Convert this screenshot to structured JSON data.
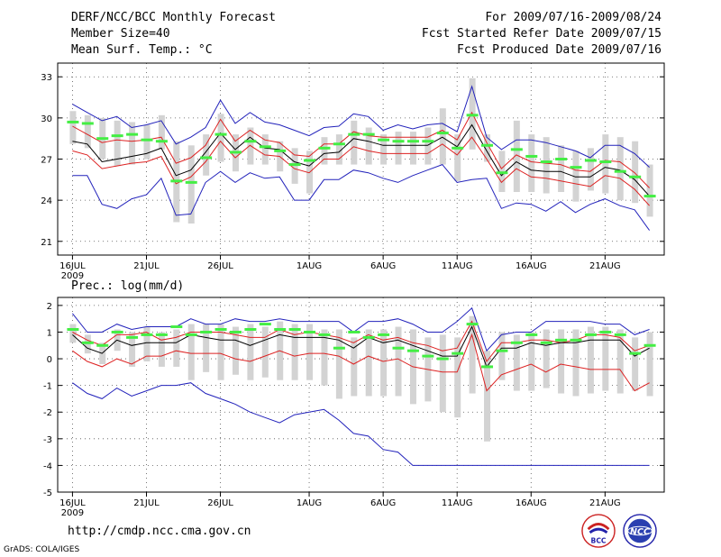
{
  "header": {
    "title": "DERF/NCC/BCC Monthly Forecast",
    "member_size": "Member Size=40",
    "variable": "Mean Surf. Temp.: °C",
    "period": "For 2009/07/16-2009/08/24",
    "start_date": "Fcst Started Refer Date 2009/07/15",
    "produced": "Fcst Produced Date 2009/07/16"
  },
  "footer": {
    "url": "http://cmdp.ncc.cma.gov.cn",
    "credit": "GrADS: COLA/IGES"
  },
  "logos": [
    {
      "name": "bcc-logo",
      "text": "BCC"
    },
    {
      "name": "ncc-logo",
      "text": "NCC"
    }
  ],
  "colors": {
    "box": "#d3d3d3",
    "median": "#44ee44",
    "mean": "#000000",
    "spread": "#dd2222",
    "extreme": "#2222bb",
    "grid": "#555555"
  },
  "chart_data": [
    {
      "type": "box-forecast",
      "title": "Mean Surf. Temp.: °C",
      "x_start_day": 0,
      "x_range": [
        -1,
        40
      ],
      "ylim": [
        20,
        34
      ],
      "yticks": [
        21,
        24,
        27,
        30,
        33
      ],
      "xticks": [
        {
          "day": 0,
          "label": "16JUL",
          "sub": "2009"
        },
        {
          "day": 5,
          "label": "21JUL"
        },
        {
          "day": 10,
          "label": "26JUL"
        },
        {
          "day": 16,
          "label": "1AUG"
        },
        {
          "day": 21,
          "label": "6AUG"
        },
        {
          "day": 26,
          "label": "11AUG"
        },
        {
          "day": 31,
          "label": "16AUG"
        },
        {
          "day": 36,
          "label": "21AUG"
        }
      ],
      "grid": true,
      "series": {
        "max": [
          31.0,
          30.4,
          29.8,
          30.1,
          29.3,
          29.5,
          29.8,
          28.1,
          28.6,
          29.3,
          31.3,
          29.6,
          30.4,
          29.7,
          29.5,
          29.1,
          28.7,
          29.3,
          29.4,
          30.3,
          30.1,
          29.1,
          29.5,
          29.2,
          29.5,
          29.6,
          29.0,
          32.3,
          28.6,
          27.7,
          28.4,
          28.4,
          28.2,
          27.9,
          27.6,
          27.1,
          28.0,
          28.0,
          27.4,
          26.4
        ],
        "mean_plus": [
          29.4,
          28.8,
          28.2,
          28.4,
          28.3,
          28.4,
          28.6,
          26.7,
          27.1,
          28.0,
          29.9,
          28.3,
          29.1,
          28.4,
          28.2,
          27.3,
          27.2,
          28.1,
          28.1,
          29.0,
          28.7,
          28.6,
          28.6,
          28.6,
          28.6,
          29.1,
          28.4,
          30.4,
          28.2,
          26.3,
          27.3,
          26.8,
          26.7,
          26.6,
          26.2,
          26.1,
          26.9,
          26.8,
          26.0,
          24.9
        ],
        "mean": [
          28.3,
          28.1,
          26.8,
          27.0,
          27.2,
          27.4,
          27.8,
          25.8,
          26.2,
          27.5,
          28.9,
          27.7,
          28.6,
          27.8,
          27.7,
          26.8,
          26.5,
          27.4,
          27.5,
          28.5,
          28.3,
          28.0,
          28.0,
          28.0,
          28.0,
          28.6,
          27.9,
          29.5,
          27.6,
          25.8,
          26.8,
          26.2,
          26.1,
          26.1,
          25.7,
          25.7,
          26.4,
          26.2,
          25.5,
          24.3
        ],
        "mean_minus": [
          27.6,
          27.3,
          26.3,
          26.5,
          26.7,
          26.8,
          27.2,
          25.2,
          25.7,
          26.8,
          28.3,
          27.1,
          28.0,
          27.3,
          27.2,
          26.3,
          26.0,
          27.0,
          27.0,
          27.9,
          27.6,
          27.4,
          27.4,
          27.4,
          27.4,
          28.1,
          27.3,
          28.6,
          27.0,
          25.3,
          26.3,
          25.7,
          25.6,
          25.4,
          25.2,
          25.0,
          25.8,
          25.6,
          24.8,
          23.6
        ],
        "min": [
          25.8,
          25.8,
          23.7,
          23.4,
          24.1,
          24.4,
          25.6,
          22.9,
          23.0,
          25.3,
          26.1,
          25.3,
          26.0,
          25.6,
          25.7,
          24.0,
          24.0,
          25.5,
          25.5,
          26.2,
          26.0,
          25.6,
          25.3,
          25.8,
          26.2,
          26.6,
          25.3,
          25.5,
          25.6,
          23.4,
          23.8,
          23.7,
          23.2,
          23.9,
          23.1,
          23.7,
          24.1,
          23.6,
          23.3,
          21.8
        ],
        "box_top": [
          30.5,
          30.2,
          30.0,
          29.8,
          29.7,
          29.5,
          30.2,
          28.3,
          28.0,
          28.8,
          30.3,
          28.8,
          29.3,
          28.8,
          28.3,
          27.8,
          27.6,
          28.6,
          28.8,
          29.8,
          29.3,
          28.8,
          29.0,
          29.0,
          29.3,
          30.7,
          28.8,
          32.9,
          28.8,
          27.6,
          29.8,
          28.8,
          28.6,
          28.0,
          27.6,
          27.8,
          28.8,
          28.6,
          28.3,
          26.6
        ],
        "box_bottom": [
          28.1,
          27.8,
          27.0,
          26.5,
          26.6,
          27.0,
          27.7,
          22.4,
          22.3,
          25.8,
          26.8,
          26.1,
          26.6,
          26.6,
          26.1,
          25.2,
          24.5,
          26.6,
          26.6,
          26.6,
          26.6,
          26.6,
          26.6,
          26.6,
          26.6,
          26.6,
          25.4,
          27.7,
          26.8,
          24.6,
          24.6,
          24.6,
          24.5,
          24.6,
          23.9,
          24.7,
          24.5,
          24.0,
          23.8,
          22.8
        ],
        "median": [
          29.7,
          29.6,
          28.5,
          28.7,
          28.8,
          28.4,
          28.3,
          25.4,
          25.3,
          27.1,
          28.8,
          27.5,
          28.3,
          27.9,
          27.6,
          26.6,
          26.9,
          27.8,
          28.1,
          28.8,
          28.8,
          28.4,
          28.3,
          28.3,
          28.3,
          28.9,
          27.8,
          30.2,
          28.0,
          26.0,
          27.7,
          27.2,
          26.8,
          27.0,
          26.4,
          26.9,
          26.8,
          26.1,
          25.7,
          24.3
        ]
      }
    },
    {
      "type": "box-forecast",
      "title": "Prec.: log(mm/d)",
      "x_start_day": 0,
      "x_range": [
        -1,
        40
      ],
      "ylim": [
        -5,
        2.3
      ],
      "yticks": [
        -5,
        -4,
        -3,
        -2,
        -1,
        0,
        1,
        2
      ],
      "xticks": [
        {
          "day": 0,
          "label": "16JUL",
          "sub": "2009"
        },
        {
          "day": 5,
          "label": "21JUL"
        },
        {
          "day": 10,
          "label": "26JUL"
        },
        {
          "day": 16,
          "label": "1AUG"
        },
        {
          "day": 21,
          "label": "6AUG"
        },
        {
          "day": 26,
          "label": "11AUG"
        },
        {
          "day": 31,
          "label": "16AUG"
        },
        {
          "day": 36,
          "label": "21AUG"
        }
      ],
      "grid": true,
      "series": {
        "max": [
          1.7,
          1.0,
          1.0,
          1.3,
          1.1,
          1.2,
          1.2,
          1.2,
          1.5,
          1.3,
          1.3,
          1.5,
          1.4,
          1.4,
          1.5,
          1.4,
          1.4,
          1.4,
          1.4,
          1.0,
          1.4,
          1.4,
          1.5,
          1.3,
          1.0,
          1.0,
          1.4,
          1.9,
          0.3,
          0.9,
          1.0,
          1.0,
          1.4,
          1.4,
          1.4,
          1.4,
          1.3,
          1.3,
          0.9,
          1.1
        ],
        "mean_plus": [
          1.0,
          0.7,
          0.5,
          0.9,
          0.9,
          1.0,
          0.7,
          0.8,
          1.0,
          1.0,
          1.0,
          0.9,
          0.8,
          0.8,
          1.1,
          0.9,
          1.0,
          0.9,
          0.8,
          0.6,
          0.9,
          0.7,
          0.8,
          0.6,
          0.5,
          0.3,
          0.4,
          1.4,
          -0.1,
          0.6,
          0.6,
          0.7,
          0.7,
          0.6,
          0.7,
          0.9,
          0.9,
          0.8,
          0.3,
          0.5
        ],
        "mean": [
          0.9,
          0.4,
          0.2,
          0.7,
          0.5,
          0.6,
          0.6,
          0.6,
          0.9,
          0.8,
          0.7,
          0.7,
          0.5,
          0.7,
          0.9,
          0.8,
          0.8,
          0.8,
          0.7,
          0.4,
          0.8,
          0.6,
          0.7,
          0.5,
          0.3,
          0.1,
          0.1,
          1.2,
          -0.3,
          0.4,
          0.4,
          0.6,
          0.5,
          0.6,
          0.6,
          0.7,
          0.7,
          0.7,
          0.1,
          0.4
        ],
        "mean_minus": [
          0.3,
          -0.1,
          -0.3,
          0.0,
          -0.2,
          0.1,
          0.1,
          0.3,
          0.2,
          0.2,
          0.2,
          0.0,
          -0.1,
          0.1,
          0.3,
          0.1,
          0.2,
          0.2,
          0.1,
          -0.2,
          0.1,
          -0.1,
          0.0,
          -0.3,
          -0.4,
          -0.5,
          -0.5,
          0.9,
          -1.2,
          -0.6,
          -0.4,
          -0.2,
          -0.5,
          -0.2,
          -0.3,
          -0.4,
          -0.4,
          -0.4,
          -1.2,
          -0.9
        ],
        "min": [
          -0.9,
          -1.3,
          -1.5,
          -1.1,
          -1.4,
          -1.2,
          -1.0,
          -1.0,
          -0.9,
          -1.3,
          -1.5,
          -1.7,
          -2.0,
          -2.2,
          -2.4,
          -2.1,
          -2.0,
          -1.9,
          -2.3,
          -2.8,
          -2.9,
          -3.4,
          -3.5,
          -4.0,
          -4.0,
          -4.0,
          -4.0,
          -4.0,
          -4.0,
          -4.0,
          -4.0,
          -4.0,
          -4.0,
          -4.0,
          -4.0,
          -4.0,
          -4.0,
          -4.0,
          -4.0,
          -4.0
        ],
        "box_top": [
          1.3,
          0.9,
          0.6,
          1.1,
          1.0,
          1.2,
          1.0,
          1.1,
          1.3,
          1.3,
          1.3,
          1.2,
          1.3,
          1.2,
          1.4,
          1.3,
          1.3,
          1.1,
          1.1,
          0.8,
          1.1,
          1.1,
          1.2,
          1.1,
          0.8,
          0.9,
          0.8,
          1.6,
          0.3,
          1.0,
          0.9,
          1.0,
          1.1,
          1.1,
          1.1,
          1.2,
          1.2,
          1.1,
          0.8,
          1.0
        ],
        "box_bottom": [
          0.6,
          0.2,
          -0.2,
          0.3,
          -0.3,
          -0.1,
          -0.3,
          -0.3,
          -0.8,
          -0.5,
          -0.8,
          -0.6,
          -0.8,
          -0.7,
          -0.8,
          -0.8,
          -0.8,
          -1.0,
          -1.5,
          -1.4,
          -1.4,
          -1.4,
          -1.4,
          -1.7,
          -1.6,
          -2.0,
          -2.2,
          -1.3,
          -3.1,
          -0.8,
          -1.2,
          -1.2,
          -1.1,
          -1.3,
          -1.4,
          -1.3,
          -1.2,
          -1.3,
          -1.2,
          -1.4
        ],
        "median": [
          1.1,
          0.6,
          0.5,
          1.0,
          0.8,
          0.9,
          0.9,
          1.2,
          0.9,
          1.0,
          1.1,
          1.0,
          1.1,
          1.3,
          1.1,
          1.1,
          1.0,
          0.9,
          0.4,
          1.0,
          0.8,
          0.9,
          0.4,
          0.3,
          0.1,
          0.0,
          0.2,
          1.3,
          -0.3,
          0.3,
          0.6,
          0.9,
          0.6,
          0.7,
          0.7,
          0.9,
          1.0,
          0.9,
          0.2,
          0.5
        ]
      }
    }
  ]
}
